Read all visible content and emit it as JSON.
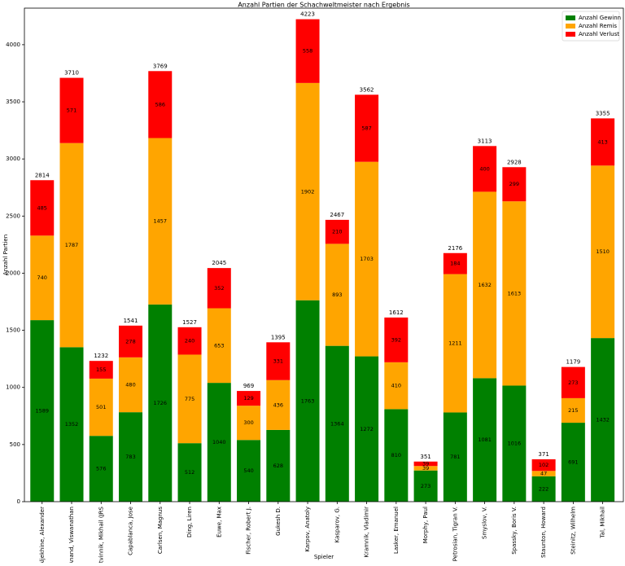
{
  "chart_data": {
    "type": "stacked-bar",
    "title": "Anzahl Partien der Schachweltmeister nach Ergebnis",
    "x_label": "Spieler",
    "y_label": "Anzahl Partien",
    "categories": [
      "Aljekhine, Alexander",
      "Anand, Viswanathan",
      "Botvinnik, Mikhail (JRS",
      "Capablanca, Jose",
      "Carlsen, Magnus",
      "Ding, Liren",
      "Euwe, Max",
      "Fischer, Robert J.",
      "Gukesh D.",
      "Karpov, Anatoly",
      "Kasparov, G.",
      "Kramnik, Vladimir",
      "Lasker, Emanuel",
      "Morphy, Paul",
      "Petrosian, Tigran V.",
      "Smyslov, V.",
      "Spassky, Boris V.",
      "Staunton, Howard",
      "Steinitz, Wilhelm",
      "Tal, Mikhail"
    ],
    "series": [
      {
        "name": "Anzahl Gewinn",
        "color": "#008000",
        "values": [
          1589,
          1352,
          576,
          783,
          1726,
          512,
          1040,
          540,
          628,
          1763,
          1364,
          1272,
          810,
          273,
          781,
          1081,
          1016,
          222,
          691,
          1432
        ]
      },
      {
        "name": "Anzahl Remis",
        "color": "#ffa500",
        "values": [
          740,
          1787,
          501,
          480,
          1457,
          775,
          653,
          300,
          436,
          1902,
          893,
          1703,
          410,
          39,
          1211,
          1632,
          1613,
          47,
          215,
          1510
        ]
      },
      {
        "name": "Anzahl Verlust",
        "color": "#ff0000",
        "values": [
          485,
          571,
          155,
          278,
          586,
          240,
          352,
          129,
          331,
          558,
          210,
          587,
          392,
          39,
          184,
          400,
          299,
          102,
          273,
          413
        ]
      }
    ],
    "totals": [
      2814,
      3710,
      1232,
      1541,
      3769,
      1527,
      2045,
      969,
      1395,
      4223,
      2467,
      3562,
      1612,
      351,
      2176,
      3113,
      2928,
      371,
      1179,
      3355
    ],
    "ylim": [
      0,
      4320
    ],
    "yticks": [
      0,
      500,
      1000,
      1500,
      2000,
      2500,
      3000,
      3500,
      4000
    ],
    "legend": "upper-right"
  }
}
